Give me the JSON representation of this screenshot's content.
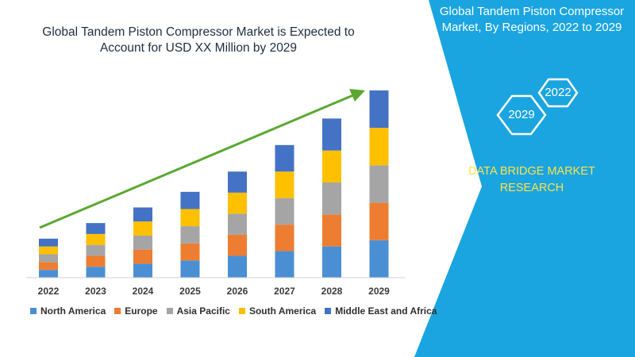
{
  "title": "Global Tandem Piston Compressor Market is Expected to Account for USD XX Million by 2029",
  "side_panel": {
    "title": "Global Tandem Piston Compressor Market, By Regions, 2022 to 2029",
    "hex_top": "2022",
    "hex_bottom": "2029",
    "brand": "DATA BRIDGE MARKET RESEARCH",
    "background": "#1aa5e0",
    "brand_color": "#ffe24a"
  },
  "chart_data": {
    "type": "bar",
    "stacked": true,
    "categories": [
      "2022",
      "2023",
      "2024",
      "2025",
      "2026",
      "2027",
      "2028",
      "2029"
    ],
    "series": [
      {
        "name": "North America",
        "color": "#4a8fd4",
        "values": [
          10,
          14,
          18,
          22,
          28,
          34,
          40,
          48
        ]
      },
      {
        "name": "Europe",
        "color": "#ed7d31",
        "values": [
          10,
          14,
          18,
          22,
          27,
          34,
          41,
          48
        ]
      },
      {
        "name": "Asia Pacific",
        "color": "#a5a5a5",
        "values": [
          10,
          14,
          18,
          22,
          27,
          34,
          41,
          48
        ]
      },
      {
        "name": "South America",
        "color": "#ffc000",
        "values": [
          10,
          14,
          18,
          22,
          27,
          34,
          41,
          48
        ]
      },
      {
        "name": "Middle East and Africa",
        "color": "#4472c4",
        "values": [
          10,
          14,
          18,
          22,
          27,
          34,
          41,
          48
        ]
      }
    ],
    "ylim": [
      0,
      240
    ],
    "grid": false,
    "legend_position": "bottom",
    "trend_arrow_color": "#5aa832"
  }
}
